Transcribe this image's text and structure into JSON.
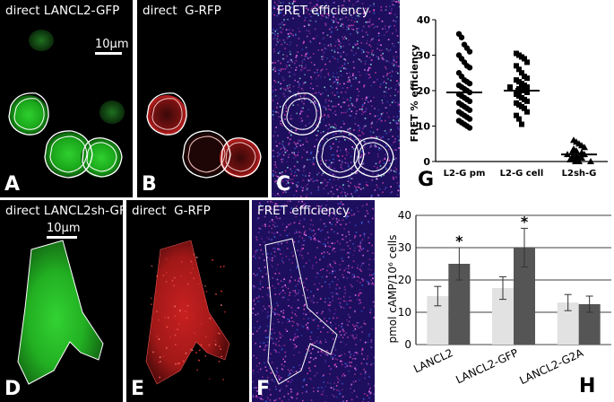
{
  "panels": {
    "A": {
      "title": "direct LANCL2-GFP",
      "label": "A",
      "scale": "10µm"
    },
    "B": {
      "title": "direct  G-RFP",
      "label": "B"
    },
    "C": {
      "title": "FRET efficiency",
      "label": "C"
    },
    "D": {
      "title": "direct LANCL2sh-GFP",
      "label": "D",
      "scale": "10µm"
    },
    "E": {
      "title": "direct  G-RFP",
      "label": "E"
    },
    "F": {
      "title": "FRET efficiency",
      "label": "F"
    },
    "G": {
      "label": "G"
    },
    "H": {
      "label": "H"
    }
  },
  "colors": {
    "gfp": "#22c422",
    "rfp": "#d42020",
    "fret_bg": "#1d0f5e",
    "bar_light": "#e2e2e2",
    "bar_dark": "#555555"
  },
  "chart_data": [
    {
      "type": "scatter",
      "ylabel": "FRET % efficiency",
      "ylim": [
        0,
        40
      ],
      "yticks": [
        0,
        10,
        20,
        30,
        40
      ],
      "categories": [
        "L2-G pm",
        "L2-G cell",
        "L2sh-G"
      ],
      "markers": [
        "circle",
        "square",
        "triangle"
      ],
      "means": [
        19.5,
        20.0,
        2.0
      ],
      "series": [
        {
          "values": [
            36,
            35,
            33,
            32,
            31,
            30,
            29,
            28,
            27,
            26.5,
            25,
            24,
            23,
            22.5,
            22,
            21.5,
            21,
            20.5,
            20,
            19.5,
            19,
            18.5,
            18,
            17.5,
            17,
            16.5,
            16,
            15.5,
            15,
            14.5,
            14,
            13.5,
            13,
            12.5,
            12,
            11.5,
            11,
            10.5,
            10,
            9.5
          ]
        },
        {
          "values": [
            30.5,
            30,
            29.5,
            29,
            28,
            27,
            26,
            25,
            24,
            23.5,
            23,
            22.5,
            22,
            21.5,
            21,
            21,
            20.5,
            20,
            20,
            19.5,
            19,
            18.5,
            18,
            17.5,
            17,
            16.5,
            16,
            15.5,
            15,
            14,
            13,
            12,
            10.5
          ]
        },
        {
          "values": [
            6,
            5.5,
            5,
            4.5,
            4,
            3.5,
            3,
            3,
            2.5,
            2,
            2,
            1.5,
            1.5,
            1,
            1,
            0.5,
            0.5,
            0,
            0,
            0,
            1,
            2
          ]
        }
      ]
    },
    {
      "type": "bar",
      "ylabel": "pmol cAMP/10⁶ cells",
      "ylim": [
        0,
        40
      ],
      "yticks": [
        0,
        10,
        20,
        30,
        40
      ],
      "categories": [
        "LANCL2",
        "LANCL2-GFP",
        "LANCL2-G2A"
      ],
      "series": [
        {
          "values": [
            15,
            17.5,
            13
          ],
          "errors": [
            3,
            3.5,
            2.5
          ]
        },
        {
          "values": [
            25,
            30,
            12.5
          ],
          "errors": [
            5,
            6,
            2.5
          ]
        }
      ],
      "annotations": [
        "*",
        "*",
        ""
      ]
    }
  ]
}
